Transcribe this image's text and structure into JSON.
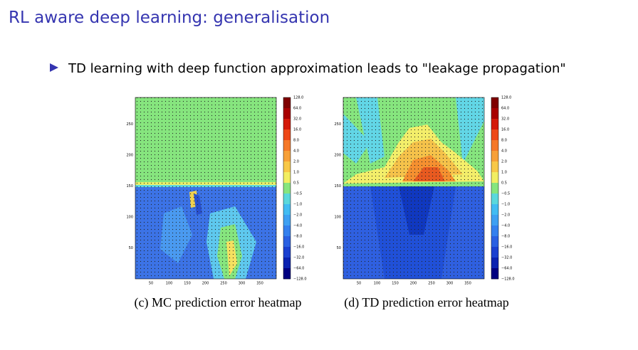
{
  "title": "RL aware deep learning: generalisation",
  "bullet": "TD learning with deep function approximation leads to \"leakage propagation\"",
  "figures": [
    {
      "caption": "(c) MC prediction error heatmap",
      "xticks": [
        "50",
        "100",
        "150",
        "200",
        "250",
        "300",
        "350"
      ],
      "yticks": [
        "50",
        "100",
        "150",
        "200",
        "250"
      ],
      "colorbar": [
        "128.0",
        "64.0",
        "32.0",
        "16.0",
        "8.0",
        "4.0",
        "2.0",
        "1.0",
        "0.5",
        "−0.5",
        "−1.0",
        "−2.0",
        "−4.0",
        "−8.0",
        "−16.0",
        "−32.0",
        "−64.0",
        "−128.0"
      ]
    },
    {
      "caption": "(d) TD prediction error heatmap",
      "xticks": [
        "50",
        "100",
        "150",
        "200",
        "250",
        "300",
        "350"
      ],
      "yticks": [
        "50",
        "100",
        "150",
        "200",
        "250"
      ],
      "colorbar": [
        "128.0",
        "64.0",
        "32.0",
        "16.0",
        "8.0",
        "4.0",
        "2.0",
        "1.0",
        "0.5",
        "−0.5",
        "−1.0",
        "−2.0",
        "−4.0",
        "−8.0",
        "−16.0",
        "−32.0",
        "−64.0",
        "−128.0"
      ]
    }
  ]
}
